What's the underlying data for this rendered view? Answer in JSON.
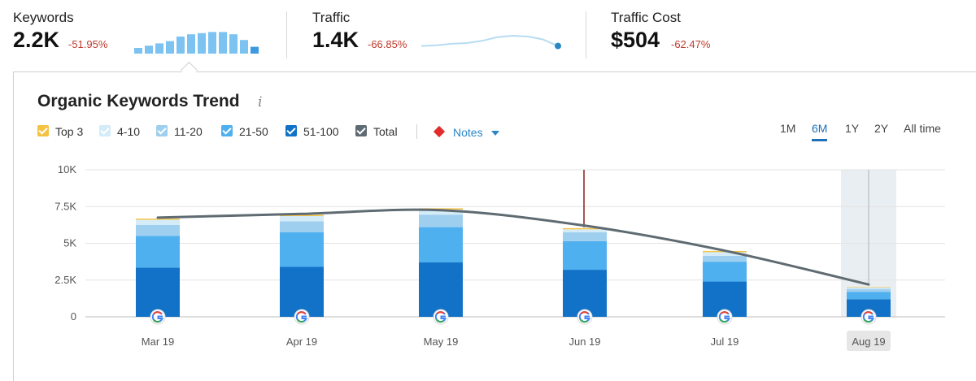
{
  "metrics": {
    "keywords": {
      "label": "Keywords",
      "value": "2.2K",
      "delta": "-51.95%"
    },
    "traffic": {
      "label": "Traffic",
      "value": "1.4K",
      "delta": "-66.85%"
    },
    "traffic_cost": {
      "label": "Traffic Cost",
      "value": "$504",
      "delta": "-62.47%"
    }
  },
  "card": {
    "title": "Organic Keywords Trend",
    "info_icon": "i",
    "notes_label": "Notes",
    "ranges": [
      "1M",
      "6M",
      "1Y",
      "2Y",
      "All time"
    ],
    "active_range": "6M"
  },
  "colors": {
    "top3": "#f5c342",
    "r4_10": "#d4ebf8",
    "r11_20": "#9fcfee",
    "r21_50": "#4fb0f0",
    "r51_100": "#1172c7",
    "total": "#5f6b72",
    "note_marker": "#8b1c1c",
    "delta_negative": "#c0392b",
    "spark_bar": "#7cc3f1",
    "spark_line": "#b7dcf3"
  },
  "chart_data": {
    "type": "bar",
    "stacked": true,
    "categories": [
      "Mar 19",
      "Apr 19",
      "May 19",
      "Jun 19",
      "Jul 19",
      "Aug 19"
    ],
    "highlighted_category": "Aug 19",
    "series": [
      {
        "name": "Top 3",
        "color_key": "top3",
        "values": [
          80,
          80,
          80,
          80,
          80,
          30
        ]
      },
      {
        "name": "4-10",
        "color_key": "r4_10",
        "values": [
          350,
          350,
          350,
          200,
          250,
          100
        ]
      },
      {
        "name": "11-20",
        "color_key": "r11_20",
        "values": [
          750,
          750,
          850,
          600,
          400,
          200
        ]
      },
      {
        "name": "21-50",
        "color_key": "r21_50",
        "values": [
          2150,
          2350,
          2400,
          1950,
          1350,
          500
        ]
      },
      {
        "name": "51-100",
        "color_key": "r51_100",
        "values": [
          3350,
          3400,
          3700,
          3200,
          2400,
          1200
        ]
      }
    ],
    "total_line": {
      "name": "Total",
      "color_key": "total",
      "values": [
        6750,
        7000,
        7250,
        6200,
        4500,
        2200
      ]
    },
    "y_ticks": [
      0,
      2500,
      5000,
      7500,
      10000
    ],
    "y_tick_labels": [
      "0",
      "2.5K",
      "5K",
      "7.5K",
      "10K"
    ],
    "ylim": [
      0,
      10000
    ],
    "grid": true,
    "note_marker_category": "Jun 19",
    "category_marker_icon": "google-g-icon"
  },
  "sparklines": {
    "keywords_bars": [
      0.25,
      0.35,
      0.45,
      0.55,
      0.75,
      0.85,
      0.9,
      0.95,
      0.95,
      0.85,
      0.6,
      0.3
    ],
    "traffic_line": [
      0.3,
      0.35,
      0.45,
      0.5,
      0.65,
      0.9,
      1.0,
      0.95,
      0.75,
      0.3
    ]
  }
}
